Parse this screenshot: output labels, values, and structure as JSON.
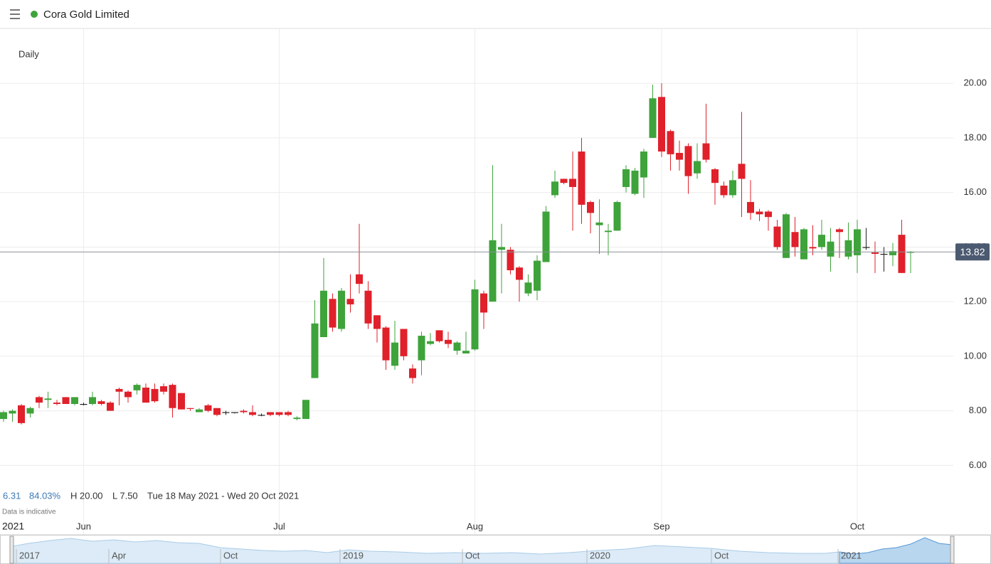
{
  "header": {
    "title": "Cora Gold Limited",
    "interval": "Daily"
  },
  "stats": {
    "change": "6.31",
    "change_pct": "84.03%",
    "high": "H 20.00",
    "low": "L 7.50",
    "range": "Tue 18 May 2021 - Wed 20 Oct 2021",
    "note": "Data is indicative"
  },
  "x_year": "2021",
  "navigator": {
    "labels": [
      "2017",
      "Apr",
      "Oct",
      "2019",
      "Oct",
      "2020",
      "Oct",
      "2021"
    ]
  },
  "chart_data": {
    "type": "candlestick",
    "up_color": "#3ea33a",
    "down_color": "#e0202a",
    "flat_color": "#222222",
    "ylim": [
      3.95,
      22.01
    ],
    "yticks": [
      {
        "value": 6,
        "label": "6.00"
      },
      {
        "value": 8,
        "label": "8.00"
      },
      {
        "value": 10,
        "label": "10.00"
      },
      {
        "value": 12,
        "label": "12.00"
      },
      {
        "value": 14,
        "label": "14.00"
      },
      {
        "value": 16,
        "label": "16.00"
      },
      {
        "value": 18,
        "label": "18.00"
      },
      {
        "value": 20,
        "label": "20.00"
      }
    ],
    "grid": true,
    "last_price": 13.82,
    "categories": [
      null,
      null,
      null,
      null,
      null,
      null,
      null,
      null,
      null,
      "Jun",
      null,
      null,
      null,
      null,
      null,
      null,
      null,
      null,
      null,
      null,
      null,
      null,
      null,
      null,
      null,
      null,
      null,
      null,
      null,
      null,
      null,
      "Jul",
      null,
      null,
      null,
      null,
      null,
      null,
      null,
      null,
      null,
      null,
      null,
      null,
      null,
      null,
      null,
      null,
      null,
      null,
      null,
      null,
      null,
      "Aug",
      null,
      null,
      null,
      null,
      null,
      null,
      null,
      null,
      null,
      null,
      null,
      null,
      null,
      null,
      null,
      null,
      null,
      null,
      null,
      null,
      "Sep",
      null,
      null,
      null,
      null,
      null,
      null,
      null,
      null,
      null,
      null,
      null,
      null,
      null,
      null,
      null,
      null,
      null,
      null,
      null,
      null,
      null,
      "Oct",
      null,
      null,
      null,
      null,
      null,
      null
    ],
    "open": [
      7.7,
      7.9,
      8.2,
      7.9,
      8.5,
      8.4,
      8.3,
      8.5,
      8.25,
      8.25,
      8.25,
      8.35,
      8.3,
      8.8,
      8.7,
      8.75,
      8.85,
      8.8,
      8.9,
      8.95,
      8.65,
      8.1,
      7.95,
      8.2,
      8.1,
      7.95,
      7.95,
      8.0,
      7.95,
      7.85,
      7.95,
      7.95,
      7.95,
      7.7,
      7.7,
      9.2,
      10.7,
      12.1,
      11.0,
      12.1,
      13.0,
      12.4,
      11.5,
      11.05,
      9.65,
      11.0,
      9.55,
      9.85,
      10.45,
      10.95,
      10.6,
      10.2,
      10.1,
      10.25,
      12.3,
      12.0,
      13.9,
      13.9,
      13.25,
      12.3,
      12.4,
      13.45,
      15.9,
      16.5,
      16.5,
      17.5,
      15.65,
      14.8,
      14.55,
      14.6,
      16.2,
      15.95,
      16.55,
      18.0,
      19.5,
      18.25,
      17.45,
      17.7,
      16.7,
      17.8,
      16.85,
      16.25,
      15.9,
      17.05,
      15.65,
      15.3,
      15.3,
      14.75,
      13.6,
      14.55,
      13.55,
      14.0,
      14.0,
      13.65,
      14.65,
      13.65,
      13.7,
      14.0,
      13.8,
      13.75,
      13.7,
      14.45,
      13.8
    ],
    "high": [
      8.0,
      8.05,
      8.25,
      8.15,
      8.55,
      8.7,
      8.4,
      8.5,
      8.5,
      8.3,
      8.7,
      8.4,
      8.35,
      8.85,
      8.75,
      9.0,
      9.0,
      9.0,
      9.0,
      9.0,
      8.65,
      8.1,
      8.1,
      8.25,
      8.1,
      8.0,
      7.95,
      8.05,
      8.2,
      7.9,
      7.95,
      7.95,
      8.0,
      7.8,
      8.4,
      12.05,
      13.6,
      12.3,
      12.5,
      13.0,
      14.85,
      12.75,
      11.5,
      11.1,
      11.3,
      11.0,
      9.7,
      10.9,
      10.85,
      10.95,
      10.9,
      10.55,
      10.9,
      12.8,
      12.4,
      17.0,
      14.85,
      14.0,
      13.3,
      13.0,
      13.7,
      15.5,
      16.8,
      16.5,
      17.5,
      18.0,
      15.7,
      15.75,
      14.85,
      15.7,
      17.0,
      16.9,
      17.6,
      19.95,
      20.0,
      18.3,
      17.9,
      17.8,
      17.8,
      19.25,
      16.9,
      16.4,
      16.8,
      18.95,
      16.45,
      15.4,
      15.35,
      15.0,
      15.25,
      15.1,
      14.7,
      14.8,
      15.0,
      14.7,
      14.7,
      14.9,
      15.0,
      14.7,
      14.2,
      14.0,
      14.15,
      15.0,
      13.85
    ],
    "low": [
      7.6,
      7.6,
      7.5,
      7.75,
      8.1,
      8.1,
      8.2,
      8.25,
      8.2,
      8.2,
      8.2,
      8.2,
      8.0,
      8.2,
      8.3,
      8.6,
      8.3,
      8.3,
      8.6,
      7.75,
      8.05,
      8.0,
      7.95,
      7.95,
      7.8,
      7.85,
      7.9,
      7.9,
      7.8,
      7.8,
      7.8,
      7.8,
      7.8,
      7.65,
      7.7,
      9.2,
      10.7,
      10.9,
      10.9,
      11.6,
      12.3,
      11.0,
      10.5,
      9.5,
      9.5,
      9.85,
      9.0,
      9.3,
      10.4,
      10.5,
      10.3,
      10.05,
      10.1,
      10.2,
      11.0,
      12.0,
      12.3,
      13.0,
      12.0,
      12.2,
      12.05,
      13.45,
      15.8,
      16.3,
      14.6,
      14.85,
      14.5,
      13.75,
      13.7,
      14.6,
      16.0,
      15.9,
      15.8,
      18.0,
      17.3,
      16.8,
      16.8,
      15.95,
      16.5,
      17.1,
      15.55,
      15.8,
      15.8,
      15.1,
      15.0,
      14.95,
      14.6,
      13.9,
      13.6,
      13.65,
      13.55,
      13.7,
      13.9,
      13.1,
      13.6,
      13.55,
      13.05,
      13.9,
      13.05,
      13.1,
      13.3,
      13.05,
      13.05
    ],
    "close": [
      7.95,
      8.0,
      7.55,
      8.1,
      8.3,
      8.45,
      8.25,
      8.25,
      8.5,
      8.25,
      8.5,
      8.25,
      8.0,
      8.7,
      8.5,
      8.95,
      8.3,
      8.35,
      8.7,
      8.1,
      8.05,
      8.08,
      8.05,
      8.0,
      7.85,
      7.95,
      7.95,
      7.95,
      7.85,
      7.85,
      7.85,
      7.85,
      7.85,
      7.75,
      8.4,
      11.2,
      12.4,
      11.05,
      12.4,
      11.9,
      12.65,
      11.2,
      11.0,
      9.85,
      10.5,
      10.0,
      9.2,
      10.75,
      10.55,
      10.55,
      10.45,
      10.5,
      10.2,
      12.45,
      11.6,
      14.25,
      14.0,
      13.15,
      12.8,
      12.7,
      13.5,
      15.3,
      16.4,
      16.35,
      16.2,
      15.55,
      15.25,
      14.9,
      14.6,
      15.65,
      16.85,
      16.8,
      17.5,
      19.45,
      17.5,
      17.4,
      17.2,
      16.6,
      17.15,
      17.2,
      16.35,
      15.9,
      16.45,
      16.5,
      15.25,
      15.2,
      15.1,
      14.0,
      15.2,
      14.0,
      14.65,
      13.95,
      14.45,
      14.2,
      14.55,
      14.25,
      14.65,
      14.0,
      13.75,
      13.75,
      13.85,
      13.05,
      13.82
    ]
  }
}
